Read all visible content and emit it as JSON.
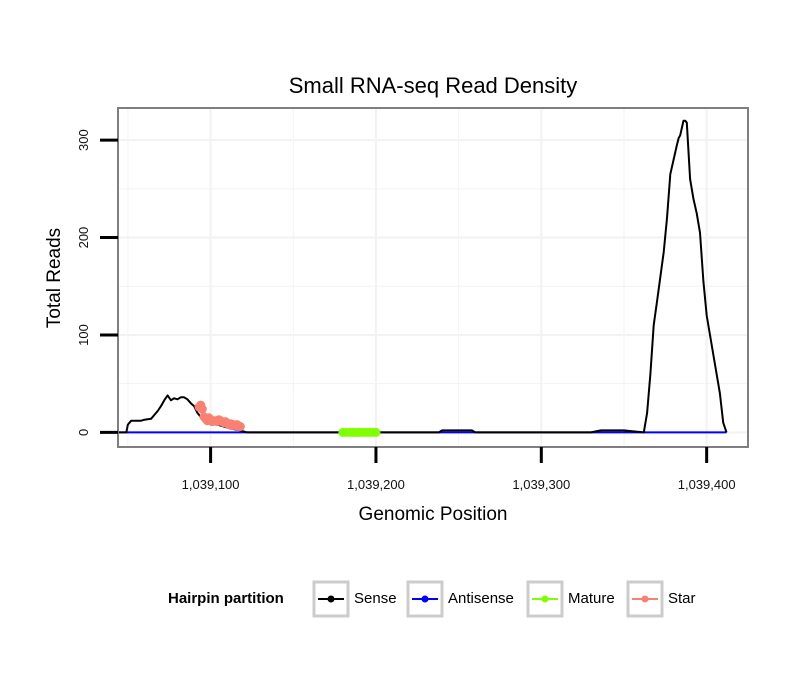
{
  "chart_data": {
    "type": "line",
    "title": "Small RNA-seq Read Density",
    "xlabel": "Genomic Position",
    "ylabel": "Total Reads",
    "xlim": [
      1039044,
      1039425
    ],
    "ylim": [
      -15,
      333
    ],
    "x_ticks": [
      1039100,
      1039200,
      1039300,
      1039400
    ],
    "x_tick_labels": [
      "1,039,100",
      "1,039,200",
      "1,039,300",
      "1,039,400"
    ],
    "y_ticks": [
      0,
      100,
      200,
      300
    ],
    "y_tick_labels": [
      "0",
      "100",
      "200",
      "300"
    ],
    "grid": true,
    "legend": {
      "title": "Hairpin partition",
      "position": "bottom",
      "entries": [
        {
          "name": "Sense",
          "color": "#000000"
        },
        {
          "name": "Antisense",
          "color": "#0000ff"
        },
        {
          "name": "Mature",
          "color": "#7fff00"
        },
        {
          "name": "Star",
          "color": "#fa8072"
        }
      ]
    },
    "series": [
      {
        "name": "Sense",
        "color": "#000000",
        "style": "line",
        "x": [
          1039044,
          1039049,
          1039050,
          1039052,
          1039054,
          1039058,
          1039060,
          1039064,
          1039066,
          1039068,
          1039070,
          1039072,
          1039074,
          1039076,
          1039078,
          1039080,
          1039082,
          1039084,
          1039086,
          1039088,
          1039090,
          1039092,
          1039094,
          1039096,
          1039098,
          1039100,
          1039104,
          1039108,
          1039112,
          1039118,
          1039122,
          1039160,
          1039180,
          1039200,
          1039220,
          1039238,
          1039240,
          1039258,
          1039260,
          1039300,
          1039330,
          1039336,
          1039350,
          1039362,
          1039364,
          1039366,
          1039368,
          1039370,
          1039372,
          1039374,
          1039376,
          1039378,
          1039380,
          1039382,
          1039383,
          1039384,
          1039386,
          1039387,
          1039388,
          1039390,
          1039392,
          1039394,
          1039396,
          1039398,
          1039400,
          1039402,
          1039404,
          1039406,
          1039408,
          1039410,
          1039412
        ],
        "y": [
          0,
          0,
          8,
          12,
          12,
          12,
          13,
          14,
          18,
          22,
          27,
          33,
          38,
          33,
          35,
          34,
          36,
          36,
          34,
          30,
          27,
          20,
          16,
          14,
          12,
          10,
          8,
          6,
          4,
          2,
          0,
          0,
          0,
          0,
          0,
          0,
          2,
          2,
          0,
          0,
          0,
          2,
          2,
          0,
          20,
          60,
          110,
          135,
          160,
          185,
          220,
          265,
          280,
          295,
          302,
          305,
          320,
          320,
          318,
          260,
          240,
          225,
          205,
          155,
          120,
          100,
          80,
          60,
          40,
          10,
          0
        ]
      },
      {
        "name": "Antisense",
        "color": "#0000ff",
        "style": "line",
        "x": [
          1039044,
          1039412
        ],
        "y": [
          0,
          0
        ]
      },
      {
        "name": "Mature",
        "color": "#7fff00",
        "style": "points",
        "x": [
          1039180,
          1039182,
          1039184,
          1039186,
          1039188,
          1039190,
          1039192,
          1039194,
          1039196,
          1039198,
          1039200
        ],
        "y": [
          0,
          0,
          0,
          0,
          0,
          0,
          0,
          0,
          0,
          0,
          0
        ]
      },
      {
        "name": "Star",
        "color": "#fa8072",
        "style": "points",
        "x": [
          1039093,
          1039094,
          1039095,
          1039096,
          1039097,
          1039098,
          1039099,
          1039100,
          1039101,
          1039102,
          1039103,
          1039104,
          1039105,
          1039106,
          1039107,
          1039108,
          1039109,
          1039110,
          1039111,
          1039112,
          1039113,
          1039114,
          1039115,
          1039116,
          1039117,
          1039118
        ],
        "y": [
          26,
          28,
          24,
          16,
          14,
          12,
          15,
          13,
          11,
          12,
          12,
          11,
          13,
          12,
          11,
          10,
          11,
          9,
          8,
          9,
          7,
          8,
          7,
          8,
          6,
          6
        ]
      }
    ]
  }
}
